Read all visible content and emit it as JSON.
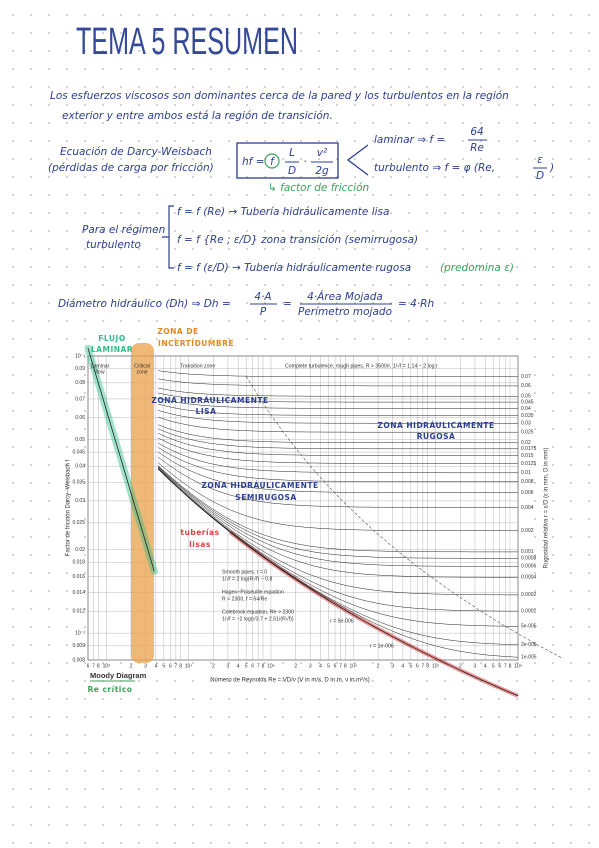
{
  "title": "TEMA 5 RESUMEN",
  "intro": [
    "Los esfuerzos viscosos son dominantes cerca de la pared y los turbulentos en la región",
    "exterior y entre ambos está la región de transición."
  ],
  "darcy": {
    "label": "Ecuación de Darcy-Weisbach",
    "sublabel": "(pérdidas de carga por fricción)",
    "lhs": "hf =",
    "f": "f",
    "L": "L",
    "D": "D",
    "dot": "·",
    "v2": "v²",
    "g2": "2g",
    "note": "↳ factor de fricción",
    "laminar": "laminar ⇒ f =",
    "laminar_num": "64",
    "laminar_den": "Re",
    "turbulent": "turbulento ⇒ f = φ (Re,",
    "turb_num": "ε",
    "turb_den": "D",
    "turb_close": ")"
  },
  "regime": {
    "label": [
      "Para el régimen",
      "turbulento"
    ],
    "lines": [
      "f = f (Re) → Tubería hidráulicamente lisa",
      "f = f {Re ; ε/D} zona transición (semirrugosa)",
      "f = f (ε/D) → Tubería hidráulicamente rugosa"
    ],
    "note": "(predomina ε)"
  },
  "hydraulic": {
    "label": "Diámetro hidráulico (Dh) ⇒ Dh =",
    "f1_num": "4·A",
    "f1_den": "P",
    "eq": "=",
    "f2_num": "4·Área Mojada",
    "f2_den": "Perímetro mojado",
    "tail": "= 4·Rh"
  },
  "moody": {
    "annotations": {
      "laminar": [
        "FLUJO",
        "LAMINAR"
      ],
      "critical": [
        "ZONA DE",
        "INCERTIDUMBRE"
      ],
      "smooth": [
        "ZONA HIDRÁULICAMENTE",
        "LISA"
      ],
      "rough": [
        "ZONA HIDRÁULICAMENTE",
        "RUGOSA"
      ],
      "semi": [
        "ZONA HIDRÁULICAMENTE",
        "SEMIRUGOSA"
      ],
      "pipes": [
        "tuberías",
        "lisas"
      ],
      "re_crit": "Re crítico"
    },
    "chart_text": {
      "laminar_flow": [
        "Laminar",
        "flow"
      ],
      "critical_zone": [
        "Critical",
        "zone"
      ],
      "transition": "Transition zone",
      "complete": "Complete turbulence, rough pipes, R > 3500/r, 1/√f = 1.14 − 2 log r",
      "smooth_eq": [
        "Smooth pipes, r = 0",
        "1/√f = 2 log(R√f) − 0.8"
      ],
      "hagen": [
        "Hagen−Poiseuille equation",
        "R < 2300, f = 64/Re"
      ],
      "colebrook": [
        "Colebrook equation, Re > 2300",
        "1/√f = −2 log(r/3.7 + 2.51/(R√f))"
      ],
      "r1": "r = 5e-006",
      "r2": "r = 1e-006",
      "title": "Moody Diagram",
      "ylabel": "Factor de fricción Darcy−Weisbach  f",
      "xlabel": "Número de Reynolds   Re = VD/ν   (V in m/s, D in m, ν in m²/s)",
      "y2label": "Rugosidad relativa  r = ε/D  (ε in mm, D in mm)"
    },
    "xlim": [
      600,
      100000000
    ],
    "ylim": [
      0.008,
      0.1
    ],
    "xticks": [
      {
        "value": 600,
        "label": "6"
      },
      {
        "value": 700,
        "label": "7"
      },
      {
        "value": 800,
        "label": "8"
      },
      {
        "value": 1000,
        "label": "10³"
      },
      {
        "value": 2000,
        "label": "2"
      },
      {
        "value": 3000,
        "label": "3"
      },
      {
        "value": 4000,
        "label": "4"
      },
      {
        "value": 5000,
        "label": "5"
      },
      {
        "value": 6000,
        "label": "6"
      },
      {
        "value": 7000,
        "label": "7"
      },
      {
        "value": 8000,
        "label": "8"
      },
      {
        "value": 10000,
        "label": "10⁴"
      },
      {
        "value": 20000,
        "label": "2"
      },
      {
        "value": 30000,
        "label": "3"
      },
      {
        "value": 40000,
        "label": "4"
      },
      {
        "value": 50000,
        "label": "5"
      },
      {
        "value": 60000,
        "label": "6"
      },
      {
        "value": 70000,
        "label": "7"
      },
      {
        "value": 80000,
        "label": "8"
      },
      {
        "value": 100000,
        "label": "10⁵"
      },
      {
        "value": 200000,
        "label": "2"
      },
      {
        "value": 300000,
        "label": "3"
      },
      {
        "value": 400000,
        "label": "4"
      },
      {
        "value": 500000,
        "label": "5"
      },
      {
        "value": 600000,
        "label": "6"
      },
      {
        "value": 700000,
        "label": "7"
      },
      {
        "value": 800000,
        "label": "8"
      },
      {
        "value": 1000000,
        "label": "10⁶"
      },
      {
        "value": 2000000,
        "label": "2"
      },
      {
        "value": 3000000,
        "label": "3"
      },
      {
        "value": 4000000,
        "label": "4"
      },
      {
        "value": 5000000,
        "label": "5"
      },
      {
        "value": 6000000,
        "label": "6"
      },
      {
        "value": 7000000,
        "label": "7"
      },
      {
        "value": 8000000,
        "label": "8"
      },
      {
        "value": 10000000,
        "label": "10⁷"
      },
      {
        "value": 20000000,
        "label": "2"
      },
      {
        "value": 30000000,
        "label": "3"
      },
      {
        "value": 40000000,
        "label": "4"
      },
      {
        "value": 50000000,
        "label": "5"
      },
      {
        "value": 60000000,
        "label": "6"
      },
      {
        "value": 70000000,
        "label": "7"
      },
      {
        "value": 80000000,
        "label": "8"
      },
      {
        "value": 100000000,
        "label": "10⁸"
      }
    ],
    "yticks": [
      {
        "value": 0.1,
        "label": "10⁻¹"
      },
      0.09,
      0.08,
      0.07,
      0.06,
      0.05,
      0.045,
      0.04,
      0.035,
      0.03,
      0.025,
      0.02,
      0.018,
      0.016,
      0.014,
      0.012,
      {
        "value": 0.01,
        "label": "10⁻²"
      },
      0.009,
      0.008
    ],
    "roughness": [
      0.07,
      0.06,
      0.05,
      0.045,
      0.04,
      0.035,
      0.03,
      0.025,
      0.02,
      0.0175,
      0.015,
      0.0125,
      0.01,
      0.008,
      0.006,
      0.004,
      0.002,
      0.001,
      0.0008,
      0.0006,
      0.0004,
      0.0002,
      0.0001,
      {
        "value": 5e-05,
        "label": "5e-005"
      },
      {
        "value": 2e-05,
        "label": "2e-005"
      },
      {
        "value": 1e-05,
        "label": "1e-005"
      }
    ]
  }
}
